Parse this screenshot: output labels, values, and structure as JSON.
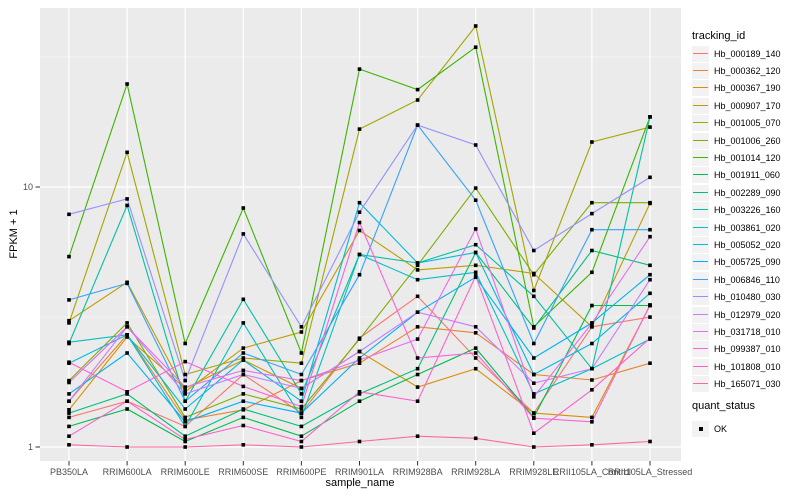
{
  "chart_data": {
    "type": "line",
    "y_axis": {
      "title": "FPKM + 1",
      "scale": "log10",
      "ticks": [
        {
          "label": "1",
          "value": 1
        },
        {
          "label": "10",
          "value": 10
        }
      ],
      "minor_gridline_values": [
        3.1623,
        31.623
      ],
      "range_approx": [
        1,
        48
      ]
    },
    "x_axis": {
      "title": "sample_name",
      "categories": [
        "PB350LA",
        "RRIM600LA",
        "RRIM600LE",
        "RRIM600SE",
        "RRIM600PE",
        "RRIM901LA",
        "RRIM928BA",
        "RRIM928LA",
        "RRIM928LE",
        "RRII105LA_Control",
        "RRII105LA_Stressed"
      ]
    },
    "legend": {
      "title": "tracking_id",
      "position": "right"
    },
    "quant_legend": {
      "title": "quant_status",
      "items": [
        {
          "label": "OK",
          "marker": "black-square"
        }
      ]
    },
    "style": {
      "panel_background": "#EBEBEB",
      "gridline_color": "#FFFFFF",
      "marker_color": "#000000",
      "tick_color": "#333333"
    },
    "series": [
      {
        "name": "Hb_000189_140",
        "color": "#F8766D",
        "values": [
          1.3,
          1.5,
          1.2,
          1.9,
          1.35,
          2.62,
          3.8,
          2.2,
          1.35,
          2.9,
          3.16
        ]
      },
      {
        "name": "Hb_000362_120",
        "color": "#EA8331",
        "values": [
          1.5,
          2.7,
          1.27,
          1.39,
          1.8,
          2.1,
          2.9,
          2.75,
          1.9,
          1.81,
          2.1
        ]
      },
      {
        "name": "Hb_000367_190",
        "color": "#D89000",
        "values": [
          1.39,
          2.65,
          1.68,
          2.16,
          1.68,
          2.33,
          1.7,
          2.0,
          1.35,
          1.3,
          3.5
        ]
      },
      {
        "name": "Hb_000907_170",
        "color": "#C09B00",
        "values": [
          3.06,
          4.3,
          1.63,
          2.4,
          2.77,
          6.8,
          4.8,
          5.0,
          4.65,
          2.9,
          8.65
        ]
      },
      {
        "name": "Hb_001005_070",
        "color": "#A3A500",
        "values": [
          3.0,
          13.6,
          1.9,
          2.2,
          2.1,
          16.7,
          21.6,
          41.6,
          4.0,
          14.9,
          17.0
        ]
      },
      {
        "name": "Hb_001006_260",
        "color": "#7CAE00",
        "values": [
          1.8,
          3.0,
          1.3,
          1.6,
          1.4,
          2.6,
          5.0,
          9.9,
          4.6,
          8.7,
          8.7
        ]
      },
      {
        "name": "Hb_001014_120",
        "color": "#39B600",
        "values": [
          5.4,
          24.9,
          2.5,
          8.3,
          2.3,
          28.4,
          23.7,
          34.5,
          2.9,
          4.7,
          18.6
        ]
      },
      {
        "name": "Hb_001911_060",
        "color": "#00BB4E",
        "values": [
          1.2,
          1.4,
          1.05,
          1.3,
          1.1,
          1.5,
          1.9,
          2.4,
          1.3,
          3.5,
          3.5
        ]
      },
      {
        "name": "Hb_002289_090",
        "color": "#00BF7D",
        "values": [
          1.35,
          1.6,
          1.1,
          1.4,
          1.2,
          1.6,
          2.0,
          5.6,
          2.87,
          5.7,
          5.0
        ]
      },
      {
        "name": "Hb_003226_160",
        "color": "#00C1A3",
        "values": [
          2.5,
          8.5,
          1.5,
          3.7,
          1.6,
          5.5,
          5.1,
          6.0,
          3.8,
          2.0,
          18.6
        ]
      },
      {
        "name": "Hb_003861_020",
        "color": "#00BFC4",
        "values": [
          2.53,
          2.7,
          1.2,
          3.0,
          1.3,
          5.5,
          4.4,
          4.7,
          1.6,
          2.0,
          2.6
        ]
      },
      {
        "name": "Hb_005052_020",
        "color": "#00BAE0",
        "values": [
          2.1,
          2.7,
          1.4,
          2.16,
          1.5,
          8.7,
          5.1,
          5.6,
          1.9,
          2.5,
          3.9
        ]
      },
      {
        "name": "Hb_005725_090",
        "color": "#00B0F6",
        "values": [
          1.6,
          2.3,
          1.25,
          1.5,
          1.35,
          2.2,
          3.3,
          4.5,
          2.2,
          3.0,
          4.6
        ]
      },
      {
        "name": "Hb_006846_110",
        "color": "#35A2FF",
        "values": [
          3.68,
          4.26,
          1.5,
          2.3,
          1.9,
          4.6,
          17.3,
          8.9,
          2.5,
          6.85,
          6.85
        ]
      },
      {
        "name": "Hb_010480_030",
        "color": "#9590FF",
        "values": [
          7.85,
          9.0,
          1.8,
          6.6,
          2.9,
          8.0,
          17.3,
          14.5,
          5.7,
          7.9,
          10.9
        ]
      },
      {
        "name": "Hb_012979_020",
        "color": "#C77CFF",
        "values": [
          1.5,
          2.9,
          1.6,
          1.9,
          1.68,
          2.33,
          3.3,
          2.9,
          1.76,
          2.0,
          4.4
        ]
      },
      {
        "name": "Hb_031718_010",
        "color": "#E76BF3",
        "values": [
          1.77,
          2.9,
          1.7,
          1.97,
          1.8,
          2.16,
          2.6,
          6.9,
          1.56,
          2.99,
          6.44
        ]
      },
      {
        "name": "Hb_099387_010",
        "color": "#FA62DB",
        "values": [
          2.12,
          1.63,
          2.13,
          1.71,
          1.43,
          7.3,
          2.2,
          2.3,
          1.29,
          1.25,
          3.52
        ]
      },
      {
        "name": "Hb_101808_010",
        "color": "#FF61CC",
        "values": [
          1.1,
          1.5,
          1.07,
          1.21,
          1.05,
          1.63,
          1.5,
          4.55,
          1.13,
          1.66,
          2.62
        ]
      },
      {
        "name": "Hb_165071_030",
        "color": "#FF67A4",
        "values": [
          1.02,
          1.0,
          1.0,
          1.02,
          1.0,
          1.05,
          1.1,
          1.08,
          1.0,
          1.02,
          1.05
        ]
      }
    ]
  }
}
